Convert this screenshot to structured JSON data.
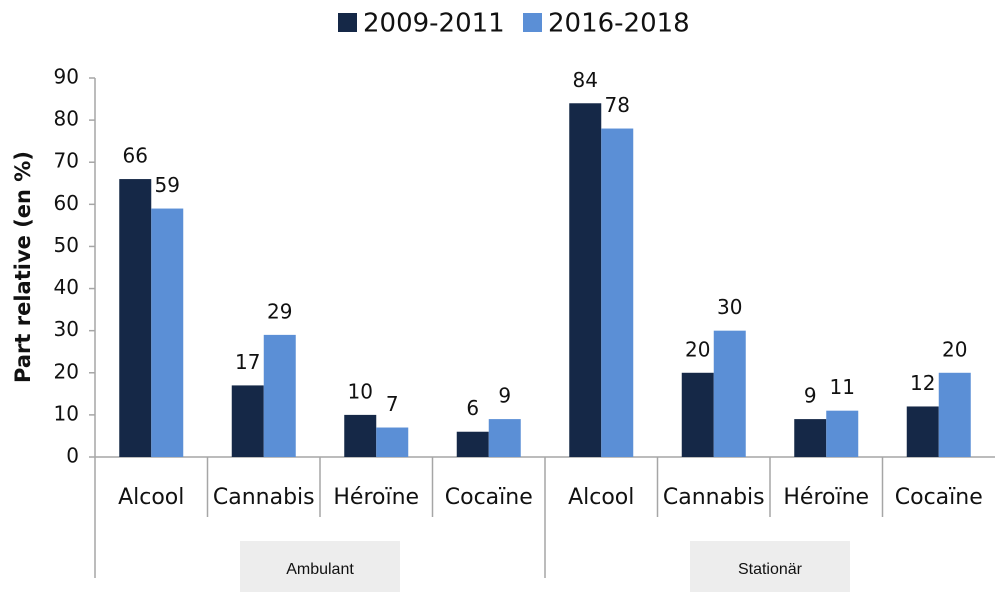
{
  "chart_data": {
    "type": "bar",
    "yaxis_label": "Part relative (en %)",
    "categories": [
      "Alcool",
      "Cannabis",
      "Héroïne",
      "Cocaïne",
      "Alcool",
      "Cannabis",
      "Héroïne",
      "Cocaïne"
    ],
    "groups": [
      "Ambulant",
      "Stationär"
    ],
    "series": [
      {
        "name": "2009-2011",
        "color": "#152847",
        "values": [
          66,
          17,
          10,
          6,
          84,
          20,
          9,
          12
        ]
      },
      {
        "name": "2016-2018",
        "color": "#5b8fd6",
        "values": [
          59,
          29,
          7,
          9,
          78,
          30,
          11,
          20
        ]
      }
    ],
    "ylim": [
      0,
      90
    ],
    "yticks": [
      0,
      10,
      20,
      30,
      40,
      50,
      60,
      70,
      80,
      90
    ],
    "grid": false,
    "legend": "top"
  }
}
